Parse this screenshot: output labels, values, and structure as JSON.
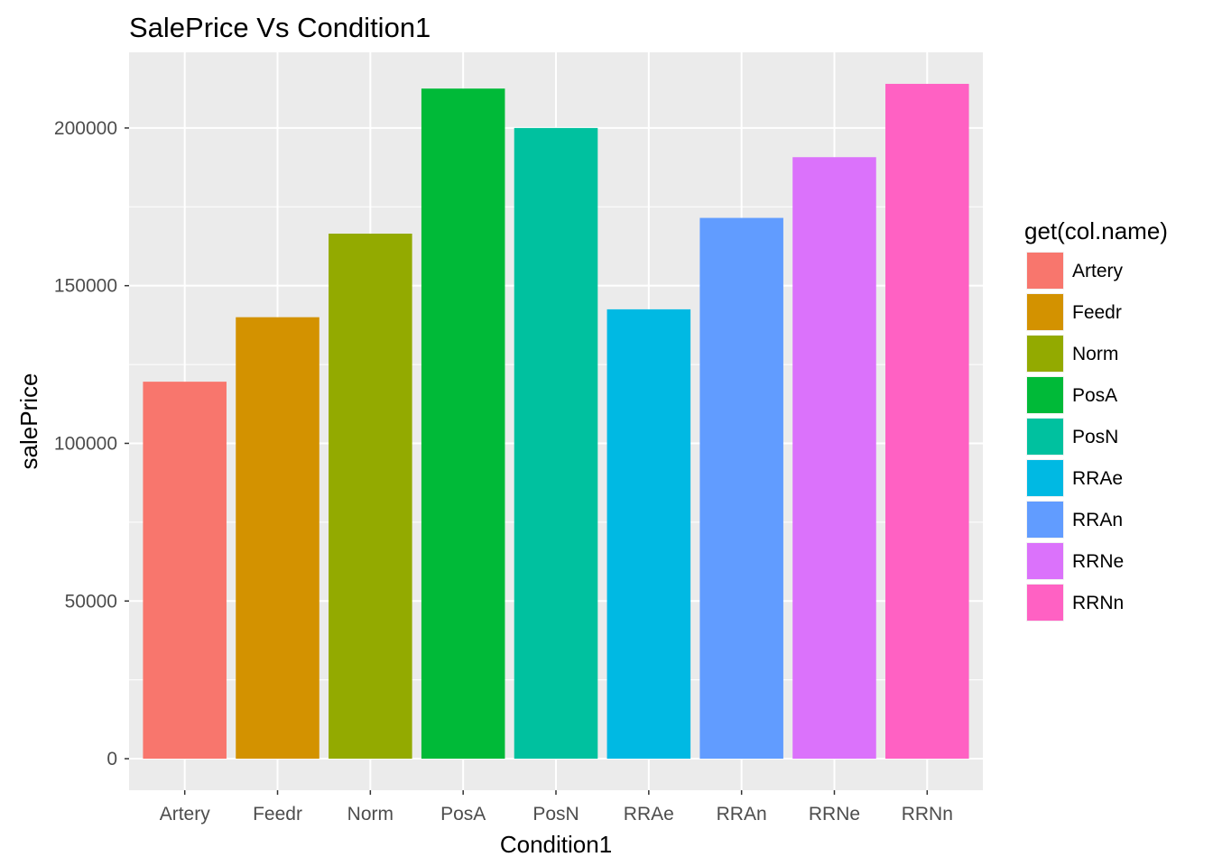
{
  "chart_data": {
    "type": "bar",
    "title": "SalePrice Vs Condition1",
    "xlabel": "Condition1",
    "ylabel": "salePrice",
    "categories": [
      "Artery",
      "Feedr",
      "Norm",
      "PosA",
      "PosN",
      "RRAe",
      "RRAn",
      "RRNe",
      "RRNn"
    ],
    "values": [
      119550,
      140000,
      166500,
      212500,
      200000,
      142500,
      171495,
      190750,
      214000
    ],
    "colors": [
      "#F8766D",
      "#D39200",
      "#93AA00",
      "#00BA38",
      "#00C19F",
      "#00B9E3",
      "#619CFF",
      "#DB72FB",
      "#FF61C3"
    ],
    "ylim": [
      -10000,
      224000
    ],
    "yticks": [
      0,
      50000,
      100000,
      150000,
      200000
    ],
    "ytick_labels": [
      "0",
      "50000",
      "100000",
      "150000",
      "200000"
    ],
    "grid": true,
    "legend": {
      "title": "get(col.name)",
      "position": "right",
      "entries": [
        "Artery",
        "Feedr",
        "Norm",
        "PosA",
        "PosN",
        "RRAe",
        "RRAn",
        "RRNe",
        "RRNn"
      ]
    }
  }
}
